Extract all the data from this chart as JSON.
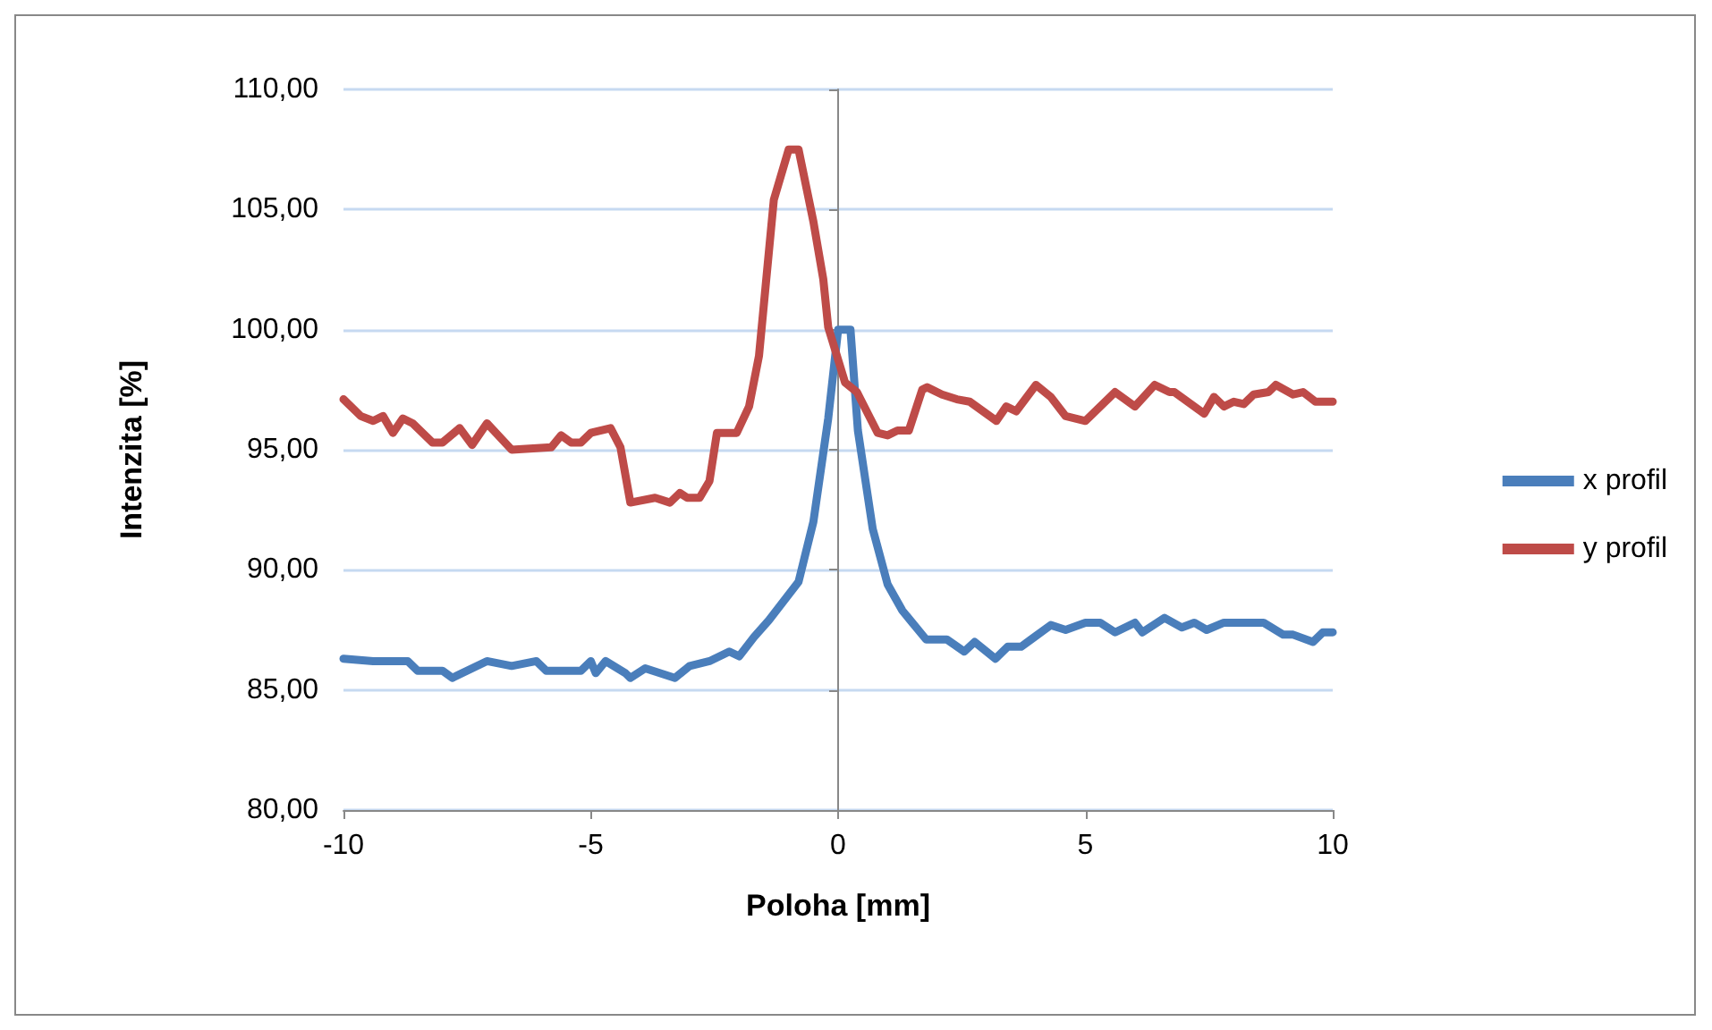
{
  "chart_data": {
    "type": "line",
    "xlabel": "Poloha [mm]",
    "ylabel": "Intenzita [%]",
    "xlim": [
      -10,
      10
    ],
    "xticks": [
      -10,
      -5,
      0,
      5,
      10
    ],
    "ylim": [
      80,
      110
    ],
    "yticks": [
      {
        "value": 80,
        "label": "80,00"
      },
      {
        "value": 85,
        "label": "85,00"
      },
      {
        "value": 90,
        "label": "90,00"
      },
      {
        "value": 95,
        "label": "95,00"
      },
      {
        "value": 100,
        "label": "100,00"
      },
      {
        "value": 105,
        "label": "105,00"
      },
      {
        "value": 110,
        "label": "110,00"
      }
    ],
    "grid": "y",
    "legend": "right",
    "marker": "none",
    "line_style": "solid",
    "series": [
      {
        "name": "x profil",
        "color": "#4a7ebb",
        "x": [
          -10,
          -9.4,
          -8.7,
          -8.5,
          -8,
          -7.8,
          -7.1,
          -6.6,
          -6.1,
          -5.9,
          -5.2,
          -5,
          -4.9,
          -4.7,
          -4.3,
          -4.2,
          -3.9,
          -3.3,
          -3,
          -2.6,
          -2.2,
          -2,
          -1.7,
          -1.4,
          -0.8,
          -0.5,
          -0.2,
          0,
          0.25,
          0.4,
          0.7,
          1,
          1.3,
          1.78,
          2.2,
          2.55,
          2.76,
          3.18,
          3.43,
          3.7,
          3.9,
          4.3,
          4.6,
          5,
          5.3,
          5.6,
          6,
          6.15,
          6.6,
          6.95,
          7.2,
          7.45,
          7.8,
          8.6,
          9,
          9.2,
          9.6,
          9.8,
          10
        ],
        "values": [
          86.3,
          86.2,
          86.2,
          85.8,
          85.8,
          85.5,
          86.2,
          86,
          86.2,
          85.8,
          85.8,
          86.2,
          85.7,
          86.2,
          85.7,
          85.5,
          85.9,
          85.5,
          86,
          86.2,
          86.6,
          86.4,
          87.2,
          87.9,
          89.5,
          92,
          96.3,
          100,
          100,
          95.8,
          91.7,
          89.4,
          88.3,
          87.1,
          87.1,
          86.6,
          87,
          86.3,
          86.8,
          86.8,
          87.1,
          87.7,
          87.5,
          87.8,
          87.8,
          87.4,
          87.8,
          87.4,
          88,
          87.6,
          87.8,
          87.5,
          87.8,
          87.8,
          87.3,
          87.3,
          87,
          87.4,
          87.4
        ]
      },
      {
        "name": "y profil",
        "color": "#be4b48",
        "x": [
          -10,
          -9.65,
          -9.4,
          -9.2,
          -9,
          -8.8,
          -8.6,
          -8.2,
          -8,
          -7.65,
          -7.4,
          -7.1,
          -6.6,
          -5.8,
          -5.6,
          -5.4,
          -5.2,
          -5,
          -4.6,
          -4.4,
          -4.2,
          -3.7,
          -3.4,
          -3.2,
          -3.05,
          -2.8,
          -2.6,
          -2.45,
          -2.05,
          -1.8,
          -1.6,
          -1.3,
          -1,
          -0.8,
          -0.5,
          -0.3,
          -0.2,
          0.14,
          0.38,
          0.8,
          1,
          1.2,
          1.43,
          1.7,
          1.8,
          2.1,
          2.4,
          2.66,
          3.2,
          3.4,
          3.6,
          4,
          4.3,
          4.6,
          5,
          5.4,
          5.6,
          6,
          6.4,
          6.7,
          6.8,
          7.4,
          7.6,
          7.8,
          8,
          8.2,
          8.4,
          8.7,
          8.85,
          9.2,
          9.4,
          9.65,
          10
        ],
        "values": [
          97.1,
          96.4,
          96.2,
          96.4,
          95.7,
          96.3,
          96.1,
          95.3,
          95.3,
          95.9,
          95.2,
          96.1,
          95,
          95.1,
          95.6,
          95.3,
          95.3,
          95.7,
          95.9,
          95.1,
          92.8,
          93,
          92.8,
          93.2,
          93,
          93,
          93.7,
          95.7,
          95.7,
          96.8,
          98.9,
          105.4,
          107.5,
          107.5,
          104.5,
          102.1,
          100.1,
          97.8,
          97.4,
          95.7,
          95.6,
          95.8,
          95.8,
          97.5,
          97.6,
          97.3,
          97.1,
          97,
          96.2,
          96.8,
          96.6,
          97.7,
          97.2,
          96.4,
          96.2,
          97,
          97.4,
          96.8,
          97.7,
          97.4,
          97.4,
          96.5,
          97.2,
          96.8,
          97,
          96.9,
          97.3,
          97.4,
          97.7,
          97.3,
          97.4,
          97,
          97
        ]
      }
    ]
  }
}
